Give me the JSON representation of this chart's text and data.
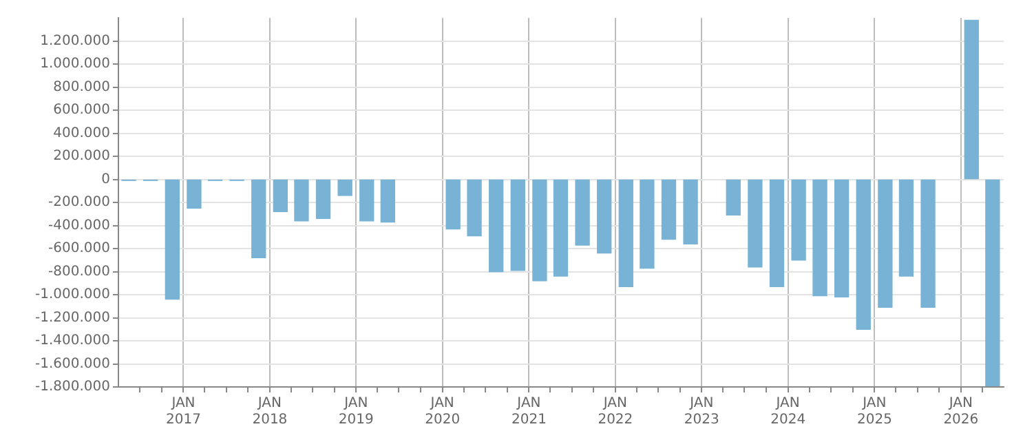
{
  "chart_data": {
    "type": "bar",
    "x": [
      "2016-05-15",
      "2016-08-15",
      "2016-11-15",
      "2017-02-15",
      "2017-05-15",
      "2017-08-15",
      "2017-11-15",
      "2018-02-15",
      "2018-05-15",
      "2018-08-15",
      "2018-11-15",
      "2019-02-15",
      "2019-05-15",
      "2019-08-15",
      "2019-11-15",
      "2020-02-15",
      "2020-05-15",
      "2020-08-15",
      "2020-11-15",
      "2021-02-15",
      "2021-05-15",
      "2021-08-15",
      "2021-11-15",
      "2022-02-15",
      "2022-05-15",
      "2022-08-15",
      "2022-11-15",
      "2023-02-15",
      "2023-05-15",
      "2023-08-15",
      "2023-11-15",
      "2024-02-15",
      "2024-05-15",
      "2024-08-15",
      "2024-11-15",
      "2025-02-15",
      "2025-05-15",
      "2025-08-15",
      "2025-11-15",
      "2026-02-15",
      "2026-05-15"
    ],
    "values": [
      -10000,
      -10000,
      -1040000,
      -250000,
      -10000,
      -10000,
      -680000,
      -280000,
      -360000,
      -340000,
      -140000,
      -360000,
      -370000,
      null,
      null,
      -430000,
      -490000,
      -800000,
      -790000,
      -880000,
      -840000,
      -570000,
      -640000,
      -930000,
      -770000,
      -520000,
      -560000,
      null,
      -310000,
      -760000,
      -930000,
      -700000,
      -1010000,
      -1020000,
      -1300000,
      -1110000,
      -840000,
      -1110000,
      null,
      1380000,
      -1790000
    ],
    "color": "#78b2d4",
    "xlim": [
      "2016-04-01",
      "2026-07-01"
    ],
    "xticks": [
      {
        "value": "2016-07-01",
        "label": null
      },
      {
        "value": "2016-10-01",
        "label": null
      },
      {
        "value": "2017-01-01",
        "label": "JAN 2017"
      },
      {
        "value": "2017-04-01",
        "label": null
      },
      {
        "value": "2017-07-01",
        "label": null
      },
      {
        "value": "2017-10-01",
        "label": null
      },
      {
        "value": "2018-01-01",
        "label": "JAN 2018"
      },
      {
        "value": "2018-04-01",
        "label": null
      },
      {
        "value": "2018-07-01",
        "label": null
      },
      {
        "value": "2018-10-01",
        "label": null
      },
      {
        "value": "2019-01-01",
        "label": "JAN 2019"
      },
      {
        "value": "2019-04-01",
        "label": null
      },
      {
        "value": "2019-07-01",
        "label": null
      },
      {
        "value": "2019-10-01",
        "label": null
      },
      {
        "value": "2020-01-01",
        "label": "JAN 2020"
      },
      {
        "value": "2020-04-01",
        "label": null
      },
      {
        "value": "2020-07-01",
        "label": null
      },
      {
        "value": "2020-10-01",
        "label": null
      },
      {
        "value": "2021-01-01",
        "label": "JAN 2021"
      },
      {
        "value": "2021-04-01",
        "label": null
      },
      {
        "value": "2021-07-01",
        "label": null
      },
      {
        "value": "2021-10-01",
        "label": null
      },
      {
        "value": "2022-01-01",
        "label": "JAN 2022"
      },
      {
        "value": "2022-04-01",
        "label": null
      },
      {
        "value": "2022-07-01",
        "label": null
      },
      {
        "value": "2022-10-01",
        "label": null
      },
      {
        "value": "2023-01-01",
        "label": "JAN 2023"
      },
      {
        "value": "2023-04-01",
        "label": null
      },
      {
        "value": "2023-07-01",
        "label": null
      },
      {
        "value": "2023-10-01",
        "label": null
      },
      {
        "value": "2024-01-01",
        "label": "JAN 2024"
      },
      {
        "value": "2024-04-01",
        "label": null
      },
      {
        "value": "2024-07-01",
        "label": null
      },
      {
        "value": "2024-10-01",
        "label": null
      },
      {
        "value": "2025-01-01",
        "label": "JAN 2025"
      },
      {
        "value": "2025-04-01",
        "label": null
      },
      {
        "value": "2025-07-01",
        "label": null
      },
      {
        "value": "2025-10-01",
        "label": null
      },
      {
        "value": "2026-01-01",
        "label": "JAN 2026"
      },
      {
        "value": "2026-04-01",
        "label": null
      }
    ],
    "ylim": [
      -1800000,
      1400000
    ],
    "yticks": [
      {
        "value": -1800000,
        "label": "-1.800.000"
      },
      {
        "value": -1600000,
        "label": "-1.600.000"
      },
      {
        "value": -1400000,
        "label": "-1.400.000"
      },
      {
        "value": -1200000,
        "label": "-1.200.000"
      },
      {
        "value": -1000000,
        "label": "-1.000.000"
      },
      {
        "value": -800000,
        "label": "-800.000"
      },
      {
        "value": -600000,
        "label": "-600.000"
      },
      {
        "value": -400000,
        "label": "-400.000"
      },
      {
        "value": -200000,
        "label": "-200.000"
      },
      0,
      {
        "value": 200000,
        "label": "200.000"
      },
      {
        "value": 400000,
        "label": "400.000"
      },
      {
        "value": 600000,
        "label": "600.000"
      },
      {
        "value": 800000,
        "label": "800.000"
      },
      {
        "value": 1000000,
        "label": "1.000.000"
      },
      {
        "value": 1200000,
        "label": "1.200.000"
      }
    ],
    "grid": true,
    "legend": false
  }
}
